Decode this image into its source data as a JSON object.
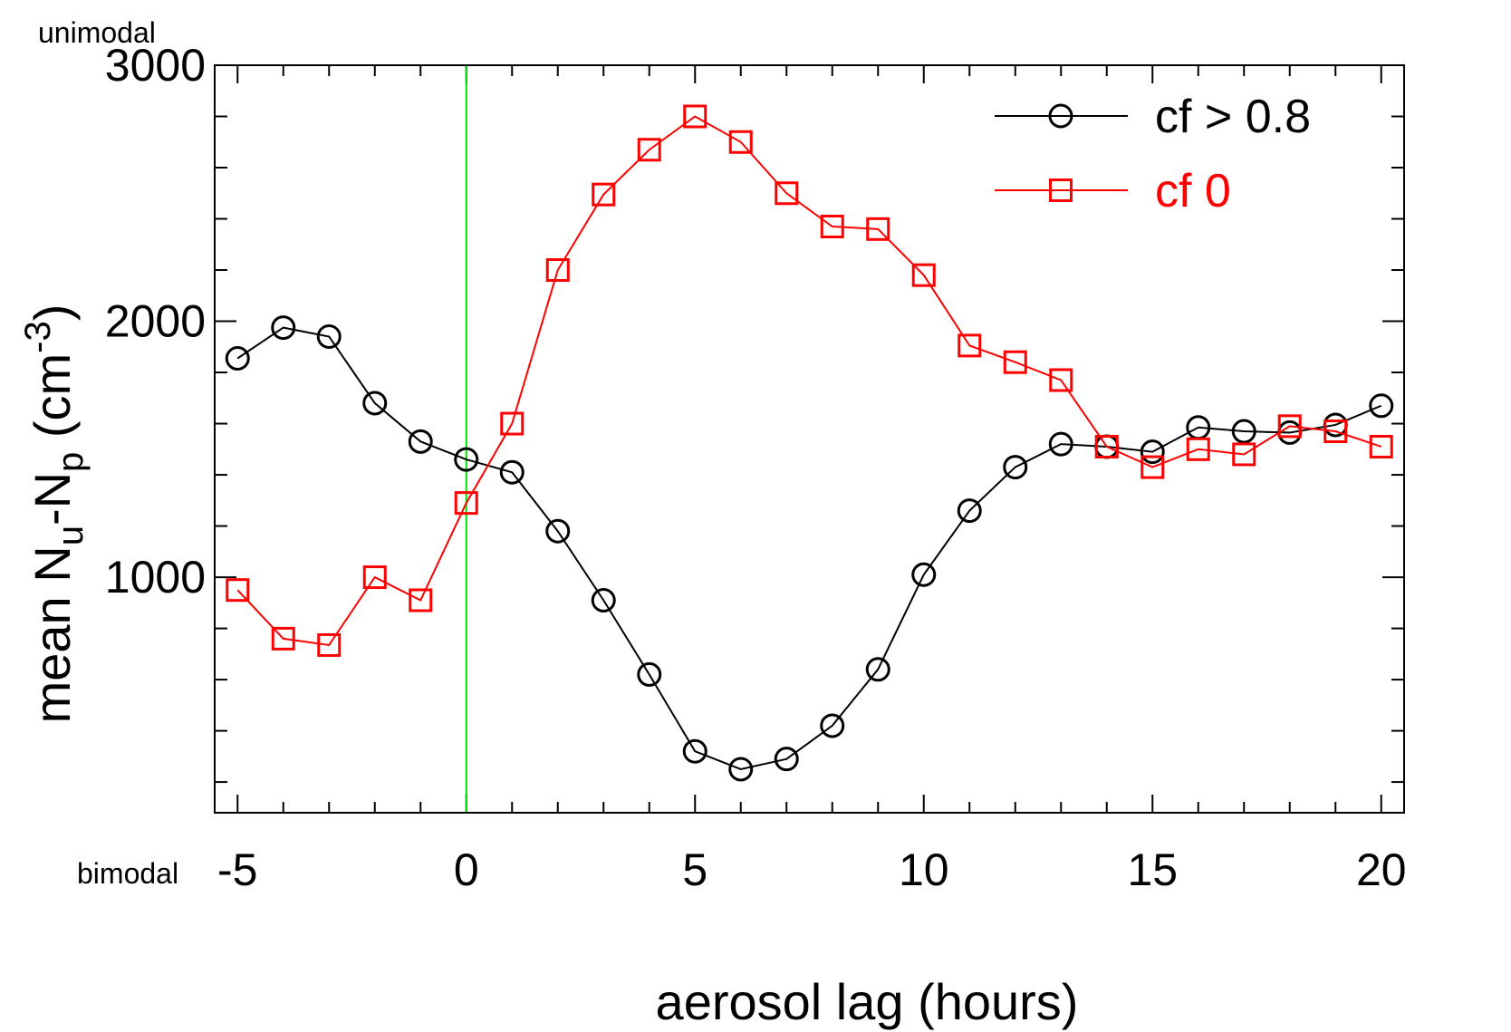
{
  "chart_data": {
    "type": "line",
    "xlabel": "aerosol lag (hours)",
    "ylabel": {
      "main": "mean N",
      "sub1": "u",
      "mid": "-N",
      "sub2": "p",
      "unit_open": " (cm",
      "sup": "-3",
      "unit_close": ")"
    },
    "xlim": [
      -5.5,
      20.5
    ],
    "ylim": [
      80,
      3000
    ],
    "xticks": [
      -5,
      0,
      5,
      10,
      15,
      20
    ],
    "xtick_labels": [
      "-5",
      "0",
      "5",
      "10",
      "15",
      "20"
    ],
    "yticks": [
      1000,
      2000,
      3000
    ],
    "ytick_labels": [
      "1000",
      "2000",
      "3000"
    ],
    "y_minor_step": 200,
    "x_minor_step": 1,
    "annotations": {
      "top": "unimodal",
      "bottom": "bimodal"
    },
    "vline": {
      "x": 0,
      "color": "#00dd00"
    },
    "legend_position": "top-right",
    "x": [
      -5,
      -4,
      -3,
      -2,
      -1,
      0,
      1,
      2,
      3,
      4,
      5,
      6,
      7,
      8,
      9,
      10,
      11,
      12,
      13,
      14,
      15,
      16,
      17,
      18,
      19,
      20
    ],
    "series": [
      {
        "name": "cf > 0.8",
        "color": "#000000",
        "marker": "circle",
        "values": [
          1855,
          1975,
          1940,
          1680,
          1530,
          1460,
          1410,
          1180,
          910,
          620,
          320,
          250,
          290,
          420,
          640,
          1010,
          1260,
          1430,
          1520,
          1510,
          1490,
          1585,
          1570,
          1565,
          1595,
          1670
        ]
      },
      {
        "name": "cf 0",
        "color": "#ff0000",
        "marker": "square",
        "values": [
          950,
          760,
          735,
          1000,
          910,
          1290,
          1600,
          2200,
          2495,
          2670,
          2800,
          2700,
          2500,
          2370,
          2360,
          2180,
          1905,
          1840,
          1770,
          1510,
          1430,
          1500,
          1480,
          1590,
          1570,
          1510
        ]
      }
    ]
  }
}
